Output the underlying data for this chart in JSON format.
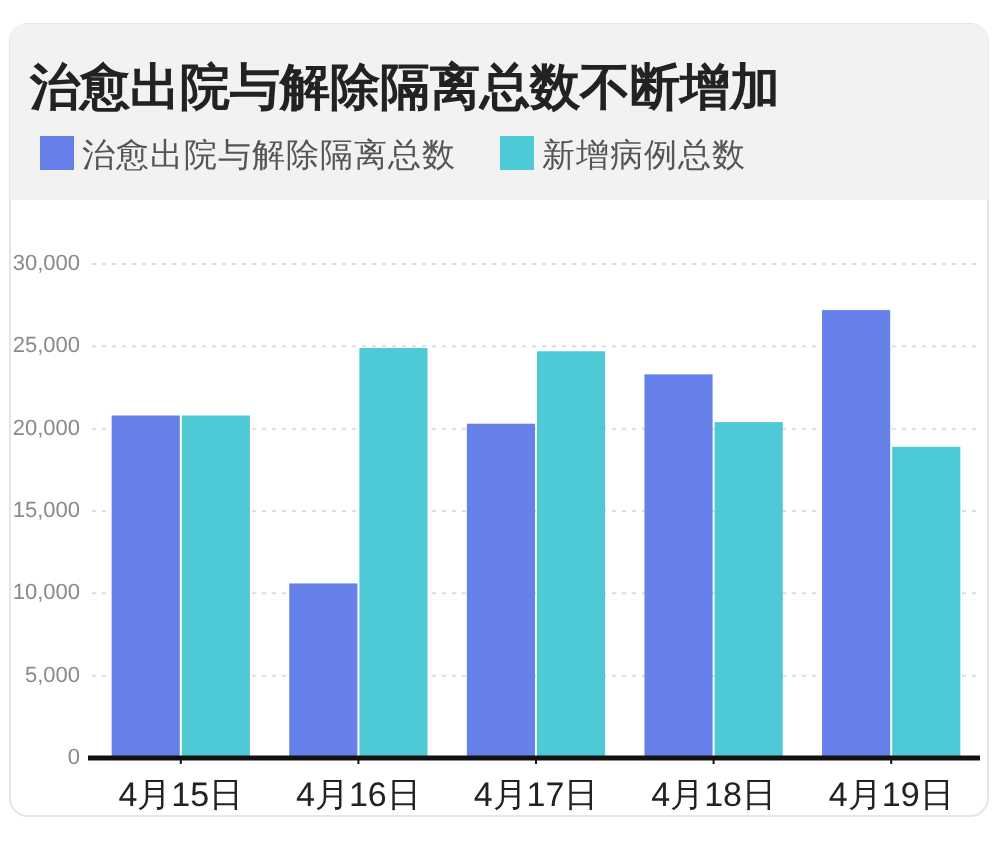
{
  "chart_data": {
    "type": "bar",
    "title": "治愈出院与解除隔离总数不断增加",
    "categories": [
      "4月15日",
      "4月16日",
      "4月17日",
      "4月18日",
      "4月19日"
    ],
    "series": [
      {
        "name": "治愈出院与解除隔离总数",
        "color": "#6680ea",
        "values": [
          20800,
          10600,
          20300,
          23300,
          27200
        ]
      },
      {
        "name": "新增病例总数",
        "color": "#4ecad6",
        "values": [
          20800,
          24900,
          24700,
          20400,
          18900
        ]
      }
    ],
    "ylim": [
      0,
      30000
    ],
    "yticks": [
      0,
      {
        "value": 5000,
        "label": "5,000"
      },
      {
        "value": 10000,
        "label": "10,000"
      },
      {
        "value": 15000,
        "label": "15,000"
      },
      {
        "value": 20000,
        "label": "20,000"
      },
      {
        "value": 25000,
        "label": "25,000"
      },
      {
        "value": 30000,
        "label": "30,000"
      }
    ],
    "grid": "y",
    "legend": "top left"
  }
}
